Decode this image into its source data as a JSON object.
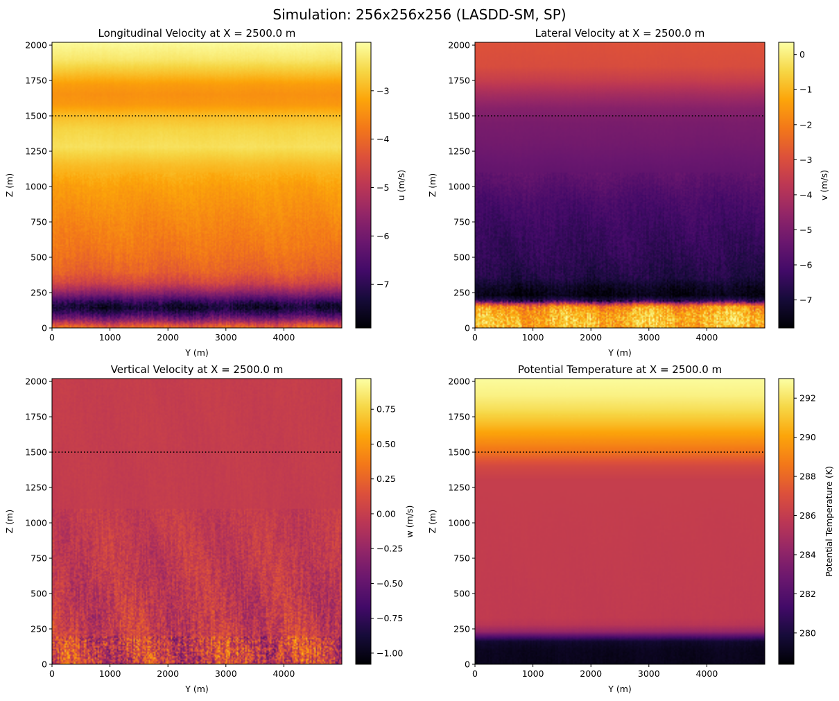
{
  "figure": {
    "suptitle": "Simulation: 256x256x256 (LASDD-SM, SP)"
  },
  "chart_data": [
    {
      "type": "heatmap",
      "title": "Longitudinal Velocity at X = 2500.0 m",
      "xlabel": "Y (m)",
      "ylabel": "Z (m)",
      "xlim": [
        0,
        5000
      ],
      "ylim": [
        0,
        2020
      ],
      "xticks": [
        0,
        1000,
        2000,
        3000,
        4000
      ],
      "yticks": [
        0,
        250,
        500,
        750,
        1000,
        1250,
        1500,
        1750,
        2000
      ],
      "reference_line": {
        "z": 1500,
        "style": "dotted"
      },
      "colorbar": {
        "label": "u (m/s)",
        "colormap": "inferno",
        "vmin": -7.9,
        "vmax": -2.0,
        "ticks": [
          -3,
          -4,
          -5,
          -6,
          -7
        ]
      },
      "profile": {
        "z": [
          0,
          20,
          60,
          100,
          140,
          160,
          190,
          230,
          270,
          320,
          400,
          550,
          800,
          1000,
          1150,
          1280,
          1400,
          1500,
          1580,
          1650,
          1720,
          1800,
          1900,
          2020
        ],
        "value": [
          -3.9,
          -4.4,
          -5.8,
          -6.8,
          -7.4,
          -7.3,
          -6.8,
          -6.0,
          -5.3,
          -4.6,
          -4.1,
          -3.8,
          -3.5,
          -3.25,
          -2.9,
          -2.45,
          -2.6,
          -2.9,
          -3.35,
          -3.45,
          -3.3,
          -2.85,
          -2.35,
          -2.05
        ]
      }
    },
    {
      "type": "heatmap",
      "title": "Lateral Velocity at X = 2500.0 m",
      "xlabel": "Y (m)",
      "ylabel": "Z (m)",
      "xlim": [
        0,
        5000
      ],
      "ylim": [
        0,
        2020
      ],
      "xticks": [
        0,
        1000,
        2000,
        3000,
        4000
      ],
      "yticks": [
        0,
        250,
        500,
        750,
        1000,
        1250,
        1500,
        1750,
        2000
      ],
      "reference_line": {
        "z": 1500,
        "style": "dotted"
      },
      "colorbar": {
        "label": "v (m/s)",
        "colormap": "inferno",
        "vmin": -7.8,
        "vmax": 0.35,
        "ticks": [
          0,
          -1,
          -2,
          -3,
          -4,
          -5,
          -6,
          -7
        ]
      },
      "profile": {
        "z": [
          0,
          40,
          100,
          150,
          170,
          190,
          230,
          290,
          350,
          500,
          700,
          900,
          1100,
          1300,
          1450,
          1550,
          1650,
          1750,
          1850,
          2020
        ],
        "value": [
          -1.2,
          -0.9,
          -1.1,
          -1.7,
          -3.5,
          -6.5,
          -7.6,
          -7.3,
          -6.8,
          -6.5,
          -6.3,
          -6.0,
          -5.5,
          -5.2,
          -5.05,
          -4.8,
          -4.2,
          -3.5,
          -3.05,
          -2.9
        ]
      }
    },
    {
      "type": "heatmap",
      "title": "Vertical Velocity at X = 2500.0 m",
      "xlabel": "Y (m)",
      "ylabel": "Z (m)",
      "xlim": [
        0,
        5000
      ],
      "ylim": [
        0,
        2020
      ],
      "xticks": [
        0,
        1000,
        2000,
        3000,
        4000
      ],
      "yticks": [
        0,
        250,
        500,
        750,
        1000,
        1250,
        1500,
        1750,
        2000
      ],
      "reference_line": {
        "z": 1500,
        "style": "dotted"
      },
      "colorbar": {
        "label": "w (m/s)",
        "colormap": "inferno",
        "vmin": -1.08,
        "vmax": 0.97,
        "ticks": [
          0.75,
          0.5,
          0.25,
          0.0,
          -0.25,
          -0.5,
          -0.75,
          -1.0
        ]
      },
      "profile": {
        "z": [
          0,
          100,
          200,
          300,
          500,
          800,
          1200,
          1600,
          2020
        ],
        "value": [
          0.0,
          0.05,
          0.0,
          -0.02,
          -0.03,
          -0.02,
          -0.01,
          -0.005,
          0.0
        ]
      }
    },
    {
      "type": "heatmap",
      "title": "Potential Temperature at X = 2500.0 m",
      "xlabel": "Y (m)",
      "ylabel": "Z (m)",
      "xlim": [
        0,
        5000
      ],
      "ylim": [
        0,
        2020
      ],
      "xticks": [
        0,
        1000,
        2000,
        3000,
        4000
      ],
      "yticks": [
        0,
        250,
        500,
        750,
        1000,
        1250,
        1500,
        1750,
        2000
      ],
      "reference_line": {
        "z": 1500,
        "style": "dotted"
      },
      "colorbar": {
        "label": "Potential Temperature (K)",
        "colormap": "inferno",
        "vmin": 278.4,
        "vmax": 293.0,
        "ticks": [
          292,
          290,
          288,
          286,
          284,
          282,
          280
        ]
      },
      "profile": {
        "z": [
          0,
          100,
          160,
          190,
          230,
          280,
          330,
          1300,
          1400,
          1450,
          1500,
          1600,
          1700,
          1800,
          1900,
          2020
        ],
        "value": [
          279.0,
          279.1,
          279.5,
          281.5,
          284.3,
          285.6,
          285.9,
          286.1,
          286.7,
          287.5,
          288.4,
          289.6,
          290.8,
          291.8,
          292.5,
          292.9
        ]
      }
    }
  ]
}
